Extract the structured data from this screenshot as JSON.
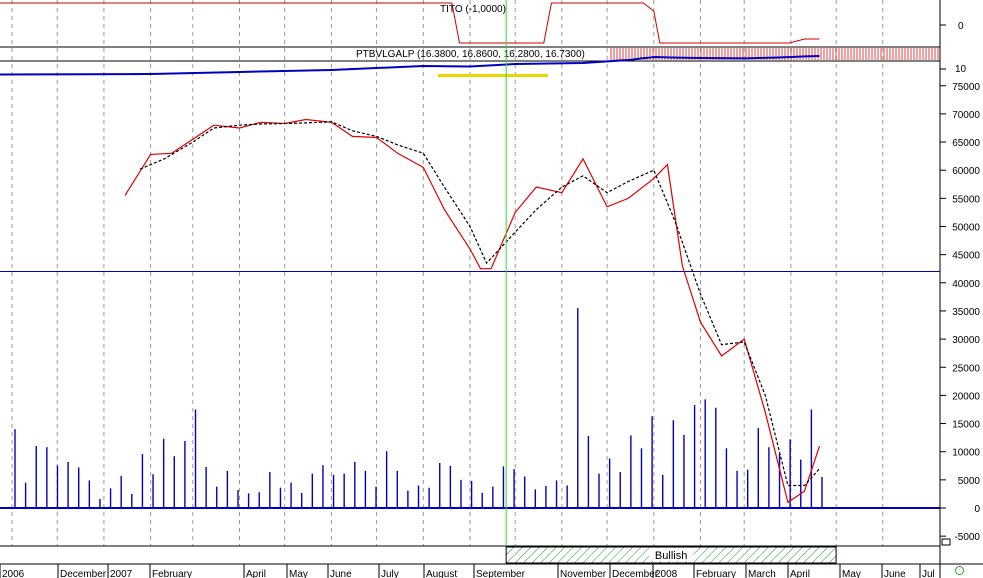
{
  "chart_data": [
    {
      "type": "line",
      "panel": "indicator",
      "legend": "TITO (-1,0000)",
      "color": "#d00000",
      "axis_tick_labels": [
        "0"
      ],
      "x": [
        "2006-10",
        "2007-08-20",
        "2007-08-25",
        "2007-09-01",
        "2007-10-20",
        "2007-10-25",
        "2007-12-25",
        "2008-01-01",
        "2008-01-05",
        "2008-03-31",
        "2008-04-10",
        "2008-04-20"
      ],
      "values": [
        1,
        1,
        0,
        0,
        0,
        1,
        1,
        0.8,
        0,
        0,
        0.1,
        0.1
      ]
    },
    {
      "type": "line",
      "panel": "price",
      "legend": "PTBVLGALP (16.3800, 16.8600, 16.2800, 16.7300)",
      "color": "#0000c0",
      "axis_tick_labels": [
        "10"
      ]
    },
    {
      "type": "line+bar",
      "panel": "main",
      "y_tick_labels": [
        "75000",
        "70000",
        "65000",
        "60000",
        "55000",
        "50000",
        "45000",
        "40000",
        "35000",
        "30000",
        "25000",
        "20000",
        "15000",
        "10000",
        "5000",
        "0",
        "-5000"
      ],
      "ylim": [
        -5000,
        77000
      ],
      "horizontal_line": 42000,
      "lower_panel_ylim": [
        -5000,
        0
      ],
      "series": [
        {
          "color": "#e00000",
          "x": [
            "2007-01-15",
            "2007-02-01",
            "2007-02-15",
            "2007-03-01",
            "2007-03-15",
            "2007-04-01",
            "2007-04-15",
            "2007-05-01",
            "2007-05-15",
            "2007-06-01",
            "2007-06-15",
            "2007-07-01",
            "2007-07-15",
            "2007-08-01",
            "2007-08-15",
            "2007-09-01",
            "2007-09-08",
            "2007-09-15",
            "2007-10-01",
            "2007-10-15",
            "2007-11-01",
            "2007-11-15",
            "2007-12-01",
            "2007-12-15",
            "2008-01-01",
            "2008-01-10",
            "2008-01-20",
            "2008-02-01",
            "2008-02-15",
            "2008-03-01",
            "2008-03-15",
            "2008-03-30",
            "2008-04-10",
            "2008-04-20"
          ],
          "values": [
            55500,
            62800,
            63000,
            65500,
            68000,
            67500,
            68500,
            68300,
            69000,
            68500,
            66000,
            65800,
            63000,
            60500,
            53000,
            46000,
            42500,
            42500,
            52500,
            57000,
            56000,
            62000,
            53500,
            55000,
            58500,
            61000,
            43000,
            33000,
            27000,
            30000,
            17000,
            1000,
            3000,
            11000
          ]
        },
        {
          "color": "#000000",
          "dash": true,
          "x": [
            "2007-01-25",
            "2007-02-10",
            "2007-03-01",
            "2007-03-15",
            "2007-04-01",
            "2007-04-15",
            "2007-05-01",
            "2007-05-15",
            "2007-06-01",
            "2007-06-15",
            "2007-07-01",
            "2007-07-15",
            "2007-08-01",
            "2007-08-15",
            "2007-09-01",
            "2007-09-12",
            "2007-10-01",
            "2007-10-15",
            "2007-11-01",
            "2007-11-15",
            "2007-12-01",
            "2007-12-15",
            "2008-01-01",
            "2008-01-15",
            "2008-02-01",
            "2008-02-15",
            "2008-03-01",
            "2008-03-15",
            "2008-03-30",
            "2008-04-10",
            "2008-04-20"
          ],
          "values": [
            60200,
            62000,
            65000,
            67500,
            68000,
            68200,
            68300,
            68400,
            68600,
            67000,
            66000,
            64500,
            63000,
            57000,
            50000,
            43500,
            49000,
            53000,
            57000,
            59000,
            56000,
            58000,
            60000,
            51000,
            38000,
            29000,
            29500,
            20000,
            4000,
            4000,
            7000
          ]
        },
        {
          "color": "#0000c0",
          "kind": "volume",
          "values": [
            14000,
            4500,
            11000,
            10800,
            7500,
            8200,
            7200,
            4900,
            1600,
            3500,
            5700,
            2500,
            9600,
            6000,
            12300,
            9200,
            11900,
            17500,
            7300,
            3800,
            6600,
            3200,
            2600,
            2800,
            6400,
            3600,
            4500,
            2700,
            6100,
            7600,
            5900,
            6100,
            8200,
            6600,
            3800,
            10100,
            6600,
            3100,
            4000,
            3600,
            8000,
            7500,
            5000,
            4800,
            2700,
            3800,
            7400,
            6900,
            5600,
            3300,
            3900,
            4900,
            4000,
            35500,
            12800,
            6100,
            8800,
            6400,
            12900,
            10600,
            16300,
            5900,
            15600,
            13000,
            18300,
            19300,
            17800,
            10600,
            6600,
            6800,
            14200,
            10800,
            9600,
            12200,
            8600,
            17500,
            5500
          ]
        }
      ]
    }
  ],
  "x_axis_labels": [
    "2006",
    "December",
    "2007",
    "February",
    "April",
    "May",
    "June",
    "July",
    "August",
    "September",
    "November",
    "December",
    "2008",
    "February",
    "March",
    "April",
    "May",
    "June",
    "Jul"
  ],
  "signal_band": {
    "label": "Bullish",
    "from": "2007-09-25",
    "to": "2008-05-01"
  },
  "cursor_date": "2007-09-25"
}
